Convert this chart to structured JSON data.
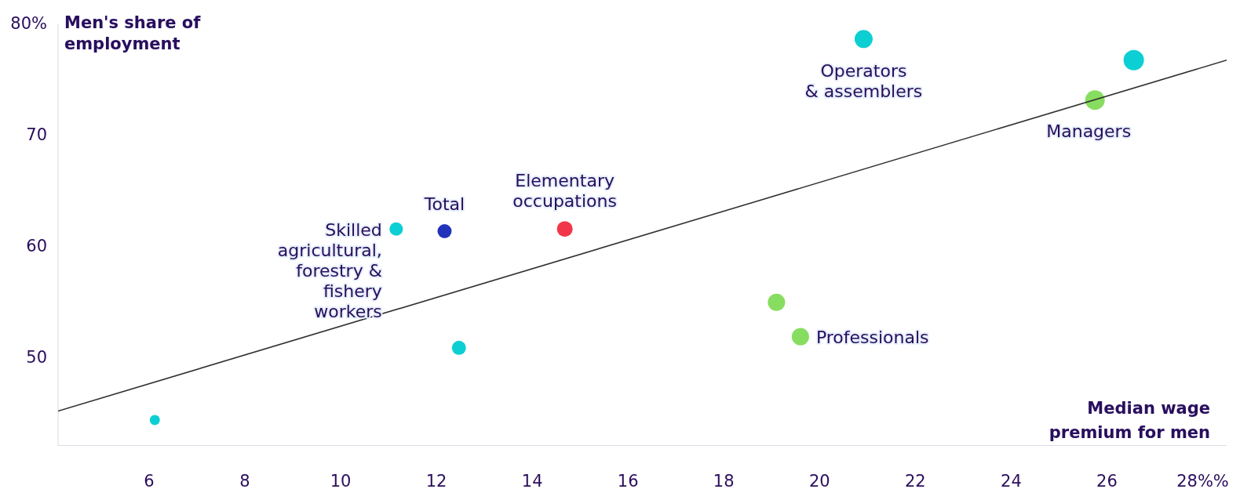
{
  "chart_data": {
    "type": "bubble",
    "xlabel": "Median wage premium for men",
    "ylabel": "Men's share of employment",
    "xlim": [
      4.1,
      28.5
    ],
    "ylim": [
      42,
      80
    ],
    "xticks": [
      6,
      8,
      10,
      12,
      14,
      16,
      18,
      20,
      22,
      24,
      26,
      {
        "value": 28,
        "label": "28%%"
      }
    ],
    "yticks": [
      50,
      60,
      70,
      {
        "value": 80,
        "label": "80%"
      }
    ],
    "grid": false,
    "legend": false,
    "series": [
      {
        "color": "#0ccfd4",
        "x": [
          6.12,
          11.16,
          12.47,
          20.92,
          26.56
        ],
        "values": [
          44.3,
          61.5,
          50.8,
          78.6,
          76.7
        ],
        "sizes": [
          0.25,
          0.43,
          0.48,
          0.78,
          1
        ]
      },
      {
        "color": "#87dd5f",
        "x": [
          19.1,
          19.6,
          25.75
        ],
        "values": [
          54.9,
          51.8,
          73.1
        ],
        "sizes": [
          0.72,
          0.72,
          0.92
        ]
      },
      {
        "color": "#f2364a",
        "x": [
          14.68
        ],
        "values": [
          61.5
        ],
        "sizes": [
          0.59
        ]
      },
      {
        "color": "#2233bb",
        "x": [
          12.17
        ],
        "values": [
          61.3
        ],
        "sizes": [
          0.48
        ]
      },
      {
        "type": "line",
        "color": "#333333",
        "x": [
          4.1,
          28.5
        ],
        "values": [
          45.1,
          76.7
        ]
      }
    ],
    "annotations": [
      {
        "text": "Operators\n& assemblers",
        "x": 20.92,
        "y": 78.6
      },
      {
        "text": "Managers",
        "x": 25.75,
        "y": 73.1
      },
      {
        "text": "Elementary\noccupations",
        "x": 14.68,
        "y": 61.5
      },
      {
        "text": "Total",
        "x": 12.17,
        "y": 61.3
      },
      {
        "text": "Skilled\nagricultural,\nforestry &\nfishery\nworkers",
        "x": 11.16,
        "y": 61.5
      },
      {
        "text": "Professionals",
        "x": 19.6,
        "y": 51.8
      }
    ]
  }
}
